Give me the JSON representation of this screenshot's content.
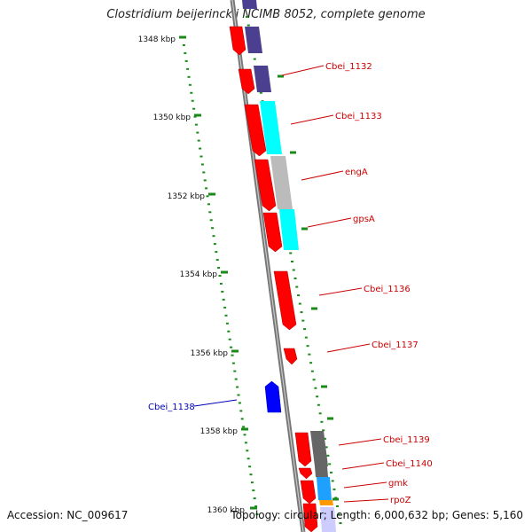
{
  "title": "Clostridium beijerinckii NCIMB 8052, complete genome",
  "accession": "Accession: NC_009617",
  "topology": "Topology: circular; Length: 6,000,632 bp; Genes: 5,160",
  "ticks": [
    "1348 kbp",
    "1350 kbp",
    "1352 kbp",
    "1354 kbp",
    "1356 kbp",
    "1358 kbp",
    "1360 kbp"
  ],
  "genes": [
    {
      "name": "Cbei_1132",
      "color": "#cc0000"
    },
    {
      "name": "Cbei_1133",
      "color": "#cc0000"
    },
    {
      "name": "engA",
      "color": "#cc0000"
    },
    {
      "name": "gpsA",
      "color": "#cc0000"
    },
    {
      "name": "Cbei_1136",
      "color": "#cc0000"
    },
    {
      "name": "Cbei_1137",
      "color": "#cc0000"
    },
    {
      "name": "Cbei_1138",
      "color": "#0000bb"
    },
    {
      "name": "Cbei_1139",
      "color": "#cc0000"
    },
    {
      "name": "Cbei_1140",
      "color": "#cc0000"
    },
    {
      "name": "gmk",
      "color": "#cc0000"
    },
    {
      "name": "rpoZ",
      "color": "#cc0000"
    }
  ],
  "colors": {
    "forward_gene": "#ff0000",
    "reverse_gene": "#0000ff",
    "backbone": "#888888",
    "tick_mark": "#1a8a1a",
    "cog_purple": "#4b3f8f",
    "cog_cyan": "#00ffff",
    "cog_gray": "#bbbbbb",
    "cog_darkgray": "#666666",
    "cog_blue": "#1ea0ff",
    "cog_orange": "#ff9900"
  }
}
